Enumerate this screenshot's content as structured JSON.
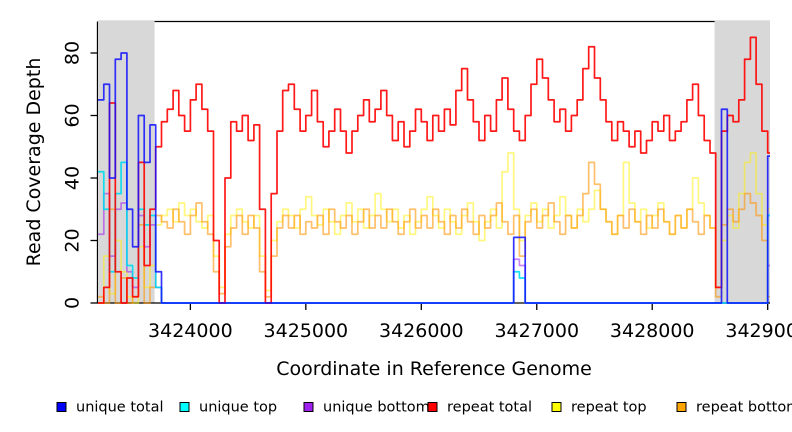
{
  "chart_data": {
    "type": "line",
    "title": "",
    "xlabel": "Coordinate in Reference Genome",
    "ylabel": "Read Coverage Depth",
    "xlim": [
      3423200,
      3429020
    ],
    "ylim": [
      0,
      90
    ],
    "x_ticks": [
      3424000,
      3425000,
      3426000,
      3427000,
      3428000,
      3429000
    ],
    "x_tick_labels": [
      "3424000",
      "3425000",
      "3426000",
      "3427000",
      "3428000",
      "3429000"
    ],
    "y_ticks": [
      0,
      20,
      40,
      60,
      80
    ],
    "y_tick_labels": [
      "0",
      "20",
      "40",
      "60",
      "80"
    ],
    "grid": false,
    "legend_position": "bottom",
    "background_color": "#FFFFFF",
    "axis_color": "#000000",
    "shaded_regions": [
      {
        "x0": 3423200,
        "x1": 3423690,
        "color": "#D8D8D8"
      },
      {
        "x0": 3428540,
        "x1": 3429020,
        "color": "#D8D8D8"
      }
    ],
    "x_start": 3423200,
    "x_step": 50,
    "draw_order": [
      4,
      5,
      2,
      1,
      3,
      0
    ],
    "series": [
      {
        "name": "unique total",
        "legend_color": "#0000FF",
        "line_color": "rgba(16,16,255,0.85)",
        "values": [
          65,
          70,
          40,
          78,
          80,
          30,
          18,
          60,
          45,
          57,
          10,
          0,
          0,
          0,
          0,
          0,
          0,
          0,
          0,
          0,
          0,
          0,
          0,
          0,
          0,
          0,
          0,
          0,
          0,
          0,
          0,
          0,
          0,
          0,
          0,
          0,
          0,
          0,
          0,
          0,
          0,
          0,
          0,
          0,
          0,
          0,
          0,
          0,
          0,
          0,
          0,
          0,
          0,
          0,
          0,
          0,
          0,
          0,
          0,
          0,
          0,
          0,
          0,
          0,
          0,
          0,
          0,
          0,
          0,
          0,
          0,
          0,
          21,
          21,
          0,
          0,
          0,
          0,
          0,
          0,
          0,
          0,
          0,
          0,
          0,
          0,
          0,
          0,
          0,
          0,
          0,
          0,
          0,
          0,
          0,
          0,
          0,
          0,
          0,
          0,
          0,
          0,
          0,
          0,
          0,
          0,
          0,
          0,
          62,
          0,
          0,
          0,
          0,
          0,
          0,
          0,
          47
        ]
      },
      {
        "name": "unique top",
        "legend_color": "#00FFFF",
        "line_color": "rgba(0,220,240,0.9)",
        "values": [
          42,
          30,
          10,
          35,
          45,
          12,
          8,
          30,
          25,
          28,
          5,
          0,
          0,
          0,
          0,
          0,
          0,
          0,
          0,
          0,
          0,
          0,
          0,
          0,
          0,
          0,
          0,
          0,
          0,
          0,
          0,
          0,
          0,
          0,
          0,
          0,
          0,
          0,
          0,
          0,
          0,
          0,
          0,
          0,
          0,
          0,
          0,
          0,
          0,
          0,
          0,
          0,
          0,
          0,
          0,
          0,
          0,
          0,
          0,
          0,
          0,
          0,
          0,
          0,
          0,
          0,
          0,
          0,
          0,
          0,
          0,
          0,
          10,
          8,
          0,
          0,
          0,
          0,
          0,
          0,
          0,
          0,
          0,
          0,
          0,
          0,
          0,
          0,
          0,
          0,
          0,
          0,
          0,
          0,
          0,
          0,
          0,
          0,
          0,
          0,
          0,
          0,
          0,
          0,
          0,
          0,
          0,
          0,
          0,
          0,
          0,
          0,
          0,
          0,
          0,
          0,
          28
        ]
      },
      {
        "name": "unique bottom",
        "legend_color": "#A020F0",
        "line_color": "rgba(160,32,240,0.55)",
        "values": [
          22,
          35,
          15,
          30,
          32,
          10,
          5,
          28,
          18,
          25,
          5,
          0,
          0,
          0,
          0,
          0,
          0,
          0,
          0,
          0,
          0,
          0,
          0,
          0,
          0,
          0,
          0,
          0,
          0,
          0,
          0,
          0,
          0,
          0,
          0,
          0,
          0,
          0,
          0,
          0,
          0,
          0,
          0,
          0,
          0,
          0,
          0,
          0,
          0,
          0,
          0,
          0,
          0,
          0,
          0,
          0,
          0,
          0,
          0,
          0,
          0,
          0,
          0,
          0,
          0,
          0,
          0,
          0,
          0,
          0,
          0,
          0,
          14,
          12,
          0,
          0,
          0,
          0,
          0,
          0,
          0,
          0,
          0,
          0,
          0,
          0,
          0,
          0,
          0,
          0,
          0,
          0,
          0,
          0,
          0,
          0,
          0,
          0,
          0,
          0,
          0,
          0,
          0,
          0,
          0,
          0,
          0,
          0,
          0,
          0,
          0,
          0,
          0,
          0,
          0,
          0,
          12
        ]
      },
      {
        "name": "repeat total",
        "legend_color": "#FF0000",
        "line_color": "rgba(255,0,0,0.9)",
        "values": [
          0,
          5,
          64,
          10,
          0,
          8,
          2,
          45,
          12,
          30,
          50,
          58,
          62,
          68,
          60,
          55,
          65,
          70,
          62,
          55,
          20,
          0,
          40,
          58,
          55,
          60,
          52,
          57,
          30,
          0,
          35,
          55,
          68,
          70,
          62,
          55,
          60,
          68,
          58,
          50,
          55,
          62,
          55,
          48,
          55,
          60,
          65,
          58,
          62,
          68,
          60,
          52,
          58,
          50,
          55,
          62,
          58,
          52,
          60,
          55,
          62,
          57,
          68,
          75,
          65,
          58,
          52,
          60,
          55,
          65,
          72,
          62,
          55,
          52,
          60,
          70,
          78,
          72,
          65,
          58,
          62,
          55,
          60,
          65,
          75,
          82,
          72,
          65,
          58,
          52,
          58,
          55,
          50,
          55,
          48,
          52,
          58,
          55,
          60,
          52,
          55,
          58,
          65,
          70,
          60,
          52,
          48,
          5,
          55,
          60,
          58,
          65,
          78,
          85,
          70,
          55,
          48
        ]
      },
      {
        "name": "repeat top",
        "legend_color": "#FFFF00",
        "line_color": "rgba(255,240,0,0.5)",
        "values": [
          0,
          15,
          3,
          20,
          10,
          2,
          0,
          18,
          5,
          12,
          25,
          28,
          30,
          26,
          32,
          28,
          30,
          26,
          24,
          28,
          15,
          5,
          22,
          28,
          30,
          26,
          24,
          28,
          15,
          4,
          20,
          26,
          30,
          28,
          24,
          30,
          34,
          28,
          25,
          30,
          26,
          22,
          28,
          32,
          26,
          30,
          24,
          28,
          35,
          30,
          26,
          30,
          24,
          28,
          22,
          26,
          30,
          34,
          28,
          24,
          30,
          26,
          22,
          28,
          32,
          26,
          20,
          26,
          30,
          24,
          42,
          48,
          30,
          20,
          28,
          32,
          26,
          30,
          24,
          28,
          34,
          28,
          24,
          30,
          26,
          30,
          36,
          30,
          26,
          22,
          28,
          45,
          32,
          26,
          30,
          24,
          28,
          32,
          26,
          22,
          28,
          24,
          30,
          40,
          32,
          28,
          24,
          5,
          20,
          28,
          24,
          35,
          45,
          48,
          35,
          25,
          30
        ]
      },
      {
        "name": "repeat bottom",
        "legend_color": "#FFA500",
        "line_color": "rgba(255,150,10,0.6)",
        "values": [
          2,
          0,
          30,
          0,
          8,
          0,
          2,
          25,
          0,
          5,
          28,
          26,
          24,
          30,
          26,
          22,
          28,
          32,
          26,
          22,
          10,
          3,
          18,
          24,
          28,
          22,
          28,
          24,
          10,
          2,
          15,
          24,
          28,
          24,
          28,
          22,
          26,
          24,
          28,
          22,
          30,
          26,
          24,
          28,
          22,
          26,
          30,
          24,
          28,
          24,
          30,
          26,
          22,
          26,
          30,
          24,
          28,
          24,
          30,
          26,
          22,
          28,
          24,
          30,
          26,
          22,
          28,
          24,
          28,
          32,
          26,
          22,
          28,
          15,
          26,
          30,
          24,
          28,
          32,
          26,
          22,
          28,
          24,
          28,
          35,
          45,
          38,
          30,
          26,
          22,
          28,
          24,
          30,
          26,
          22,
          28,
          24,
          30,
          26,
          22,
          28,
          24,
          30,
          26,
          22,
          28,
          24,
          2,
          25,
          30,
          26,
          30,
          35,
          32,
          28,
          20,
          2
        ]
      }
    ]
  }
}
